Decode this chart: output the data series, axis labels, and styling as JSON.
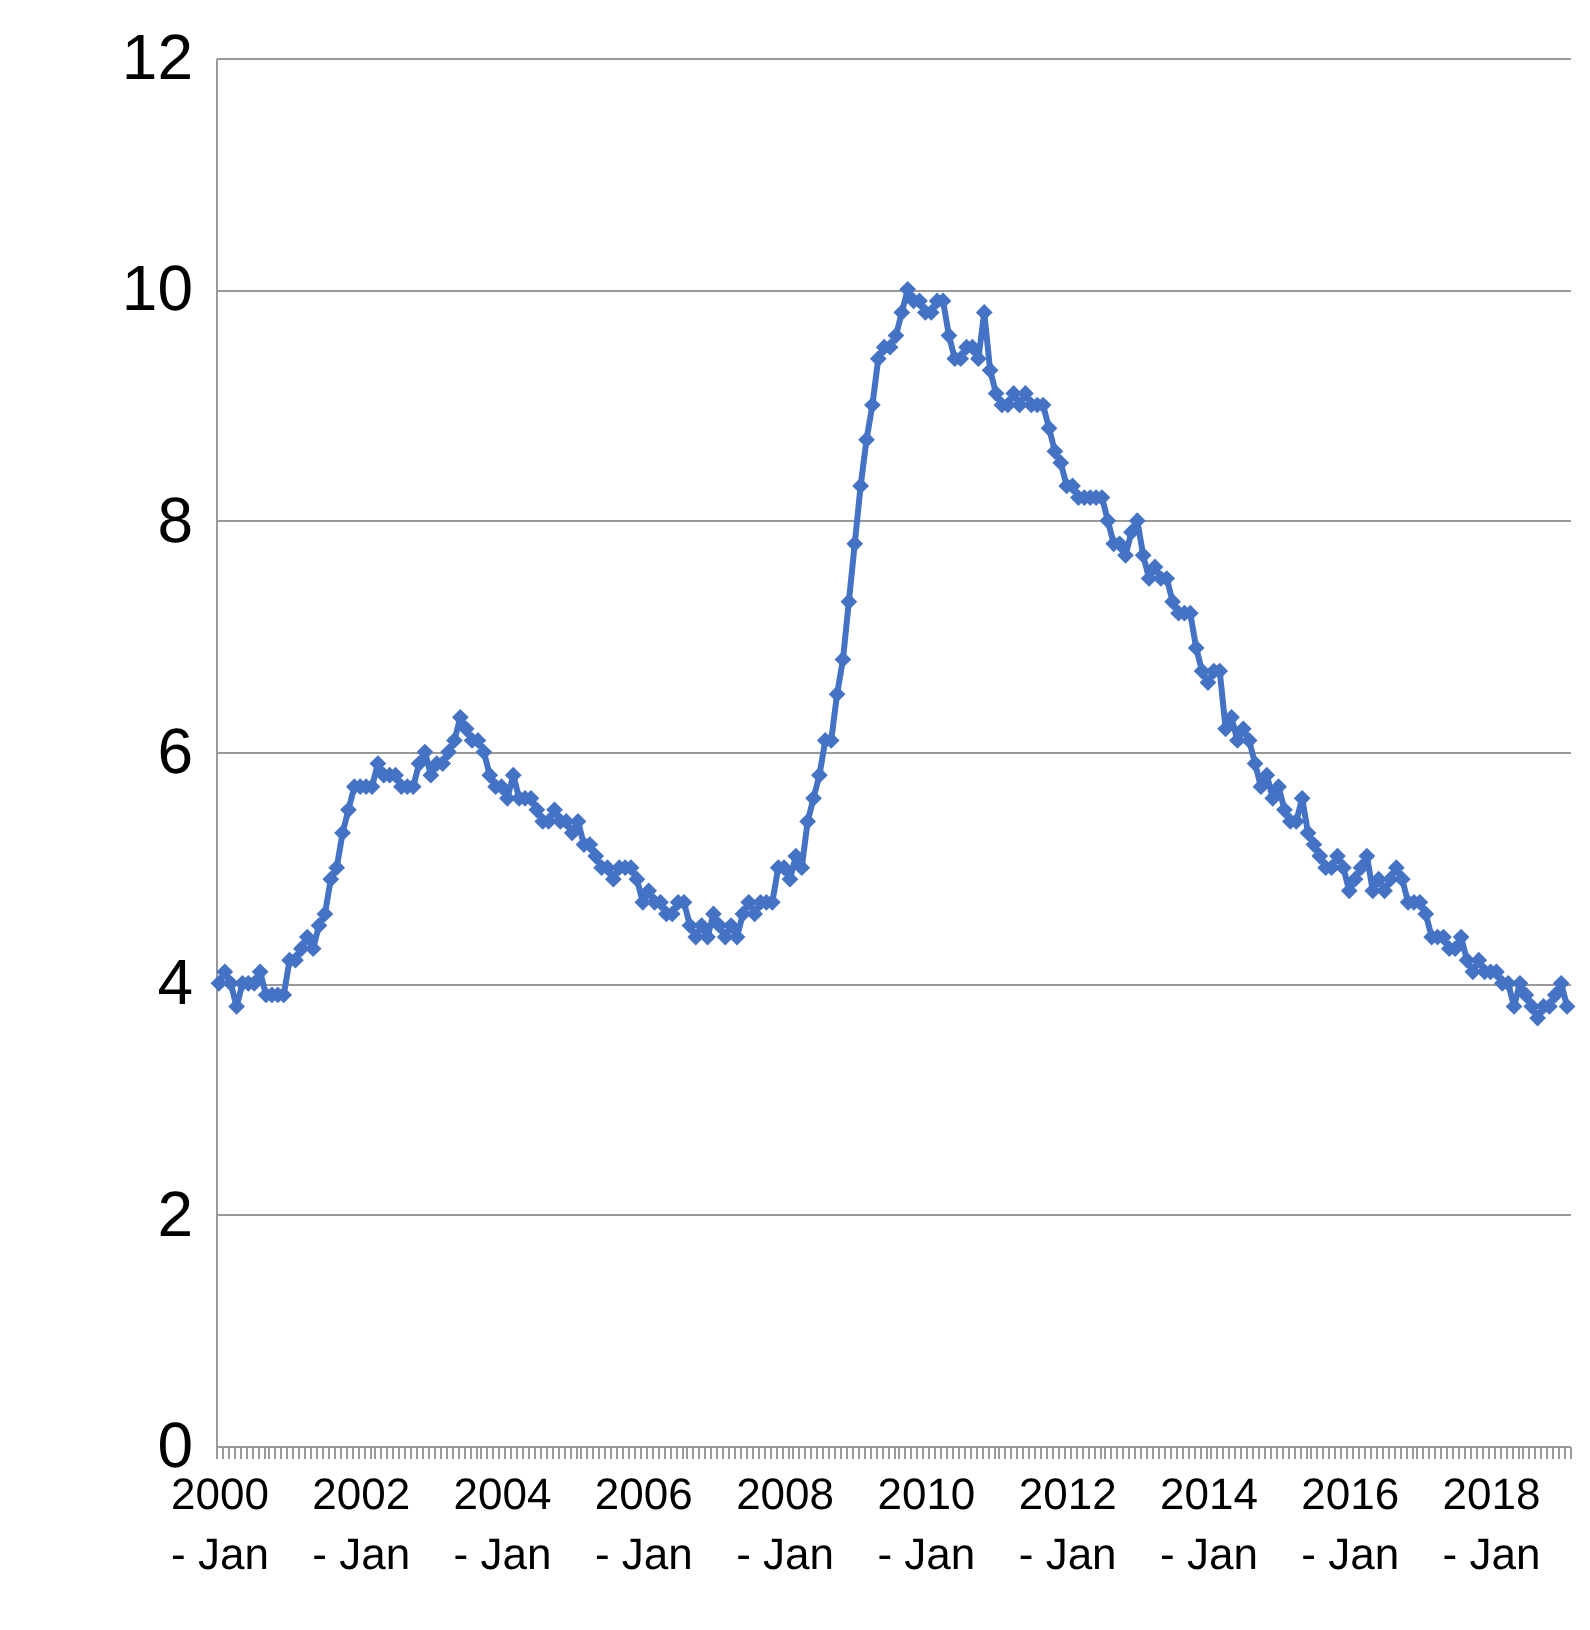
{
  "chart_data": {
    "type": "line",
    "categories": [
      "2000 - Jan",
      null,
      null,
      null,
      null,
      null,
      null,
      null,
      null,
      null,
      null,
      null,
      null,
      null,
      null,
      null,
      null,
      null,
      null,
      null,
      null,
      null,
      null,
      null,
      "2002 - Jan",
      null,
      null,
      null,
      null,
      null,
      null,
      null,
      null,
      null,
      null,
      null,
      null,
      null,
      null,
      null,
      null,
      null,
      null,
      null,
      null,
      null,
      null,
      null,
      "2004 - Jan",
      null,
      null,
      null,
      null,
      null,
      null,
      null,
      null,
      null,
      null,
      null,
      null,
      null,
      null,
      null,
      null,
      null,
      null,
      null,
      null,
      null,
      null,
      null,
      "2006 - Jan",
      null,
      null,
      null,
      null,
      null,
      null,
      null,
      null,
      null,
      null,
      null,
      null,
      null,
      null,
      null,
      null,
      null,
      null,
      null,
      null,
      null,
      null,
      null,
      "2008 - Jan",
      null,
      null,
      null,
      null,
      null,
      null,
      null,
      null,
      null,
      null,
      null,
      null,
      null,
      null,
      null,
      null,
      null,
      null,
      null,
      null,
      null,
      null,
      null,
      "2010 - Jan",
      null,
      null,
      null,
      null,
      null,
      null,
      null,
      null,
      null,
      null,
      null,
      null,
      null,
      null,
      null,
      null,
      null,
      null,
      null,
      null,
      null,
      null,
      null,
      "2012 - Jan",
      null,
      null,
      null,
      null,
      null,
      null,
      null,
      null,
      null,
      null,
      null,
      null,
      null,
      null,
      null,
      null,
      null,
      null,
      null,
      null,
      null,
      null,
      null,
      "2014 - Jan",
      null,
      null,
      null,
      null,
      null,
      null,
      null,
      null,
      null,
      null,
      null,
      null,
      null,
      null,
      null,
      null,
      null,
      null,
      null,
      null,
      null,
      null,
      null,
      "2016 - Jan",
      null,
      null,
      null,
      null,
      null,
      null,
      null,
      null,
      null,
      null,
      null,
      null,
      null,
      null,
      null,
      null,
      null,
      null,
      null,
      null,
      null,
      null,
      null,
      "2018 - Jan",
      null,
      null,
      null,
      null,
      null,
      null,
      null,
      null,
      null,
      null,
      null,
      null,
      null
    ],
    "series": [
      {
        "color": "#4472c4",
        "values": [
          4.0,
          4.1,
          4.0,
          3.8,
          4.0,
          4.0,
          4.0,
          4.1,
          3.9,
          3.9,
          3.9,
          3.9,
          4.2,
          4.2,
          4.3,
          4.4,
          4.3,
          4.5,
          4.6,
          4.9,
          5.0,
          5.3,
          5.5,
          5.7,
          5.7,
          5.7,
          5.7,
          5.9,
          5.8,
          5.8,
          5.8,
          5.7,
          5.7,
          5.7,
          5.9,
          6.0,
          5.8,
          5.9,
          5.9,
          6.0,
          6.1,
          6.3,
          6.2,
          6.1,
          6.1,
          6.0,
          5.8,
          5.7,
          5.7,
          5.6,
          5.8,
          5.6,
          5.6,
          5.6,
          5.5,
          5.4,
          5.4,
          5.5,
          5.4,
          5.4,
          5.3,
          5.4,
          5.2,
          5.2,
          5.1,
          5.0,
          5.0,
          4.9,
          5.0,
          5.0,
          5.0,
          4.9,
          4.7,
          4.8,
          4.7,
          4.7,
          4.6,
          4.6,
          4.7,
          4.7,
          4.5,
          4.4,
          4.5,
          4.4,
          4.6,
          4.5,
          4.4,
          4.5,
          4.4,
          4.6,
          4.7,
          4.6,
          4.7,
          4.7,
          4.7,
          5.0,
          5.0,
          4.9,
          5.1,
          5.0,
          5.4,
          5.6,
          5.8,
          6.1,
          6.1,
          6.5,
          6.8,
          7.3,
          7.8,
          8.3,
          8.7,
          9.0,
          9.4,
          9.5,
          9.5,
          9.6,
          9.8,
          10.0,
          9.9,
          9.9,
          9.8,
          9.8,
          9.9,
          9.9,
          9.6,
          9.4,
          9.4,
          9.5,
          9.5,
          9.4,
          9.8,
          9.3,
          9.1,
          9.0,
          9.0,
          9.1,
          9.0,
          9.1,
          9.0,
          9.0,
          9.0,
          8.8,
          8.6,
          8.5,
          8.3,
          8.3,
          8.2,
          8.2,
          8.2,
          8.2,
          8.2,
          8.0,
          7.8,
          7.8,
          7.7,
          7.9,
          8.0,
          7.7,
          7.5,
          7.6,
          7.5,
          7.5,
          7.3,
          7.2,
          7.2,
          7.2,
          6.9,
          6.7,
          6.6,
          6.7,
          6.7,
          6.2,
          6.3,
          6.1,
          6.2,
          6.1,
          5.9,
          5.7,
          5.8,
          5.6,
          5.7,
          5.5,
          5.4,
          5.4,
          5.6,
          5.3,
          5.2,
          5.1,
          5.0,
          5.0,
          5.1,
          5.0,
          4.8,
          4.9,
          5.0,
          5.1,
          4.8,
          4.9,
          4.8,
          4.9,
          5.0,
          4.9,
          4.7,
          4.7,
          4.7,
          4.6,
          4.4,
          4.4,
          4.4,
          4.3,
          4.3,
          4.4,
          4.2,
          4.1,
          4.2,
          4.1,
          4.1,
          4.1,
          4.0,
          4.0,
          3.8,
          4.0,
          3.9,
          3.8,
          3.7,
          3.8,
          3.8,
          3.9,
          4.0,
          3.8
        ]
      }
    ],
    "ylim": [
      0,
      12
    ],
    "yticks": [
      0,
      2,
      4,
      6,
      8,
      10,
      12
    ],
    "grid": "y",
    "marker": "diamond",
    "line_style": "solid"
  }
}
